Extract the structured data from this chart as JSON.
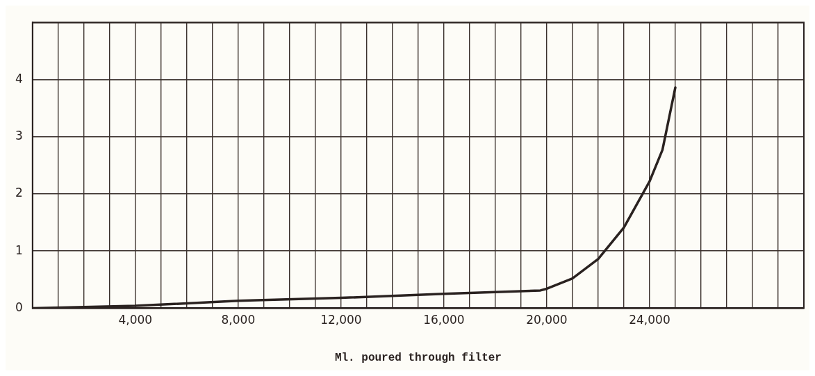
{
  "chart_data": {
    "type": "line",
    "xlabel": "Ml. poured through filter",
    "x": [
      0,
      4000,
      8000,
      12000,
      16000,
      19750,
      20000,
      21000,
      22000,
      23000,
      24000,
      24500,
      25000
    ],
    "series": [
      {
        "color": "#2a2220",
        "values": [
          0,
          0.04,
          0.13,
          0.18,
          0.25,
          0.31,
          0.34,
          0.52,
          0.86,
          1.41,
          2.22,
          2.77,
          3.86
        ]
      }
    ],
    "xlim": [
      0,
      30000
    ],
    "xticks": [
      {
        "value": 0,
        "label": null
      },
      {
        "value": 1000,
        "label": null
      },
      {
        "value": 2000,
        "label": null
      },
      {
        "value": 3000,
        "label": null
      },
      {
        "value": 4000,
        "label": "4,000"
      },
      {
        "value": 5000,
        "label": null
      },
      {
        "value": 6000,
        "label": null
      },
      {
        "value": 7000,
        "label": null
      },
      {
        "value": 8000,
        "label": "8,000"
      },
      {
        "value": 9000,
        "label": null
      },
      {
        "value": 10000,
        "label": null
      },
      {
        "value": 11000,
        "label": null
      },
      {
        "value": 12000,
        "label": "12,000"
      },
      {
        "value": 13000,
        "label": null
      },
      {
        "value": 14000,
        "label": null
      },
      {
        "value": 15000,
        "label": null
      },
      {
        "value": 16000,
        "label": "16,000"
      },
      {
        "value": 17000,
        "label": null
      },
      {
        "value": 18000,
        "label": null
      },
      {
        "value": 19000,
        "label": null
      },
      {
        "value": 20000,
        "label": "20,000"
      },
      {
        "value": 21000,
        "label": null
      },
      {
        "value": 22000,
        "label": null
      },
      {
        "value": 23000,
        "label": null
      },
      {
        "value": 24000,
        "label": "24,000"
      },
      {
        "value": 25000,
        "label": null
      },
      {
        "value": 26000,
        "label": null
      },
      {
        "value": 27000,
        "label": null
      },
      {
        "value": 28000,
        "label": null
      },
      {
        "value": 29000,
        "label": null
      },
      {
        "value": 30000,
        "label": null
      }
    ],
    "ylim": [
      0,
      5
    ],
    "yticks": [
      0,
      1,
      2,
      3,
      4,
      {
        "value": 5,
        "label": null
      }
    ],
    "grid": true,
    "legend": false,
    "marker": "none",
    "line_style": "solid"
  }
}
